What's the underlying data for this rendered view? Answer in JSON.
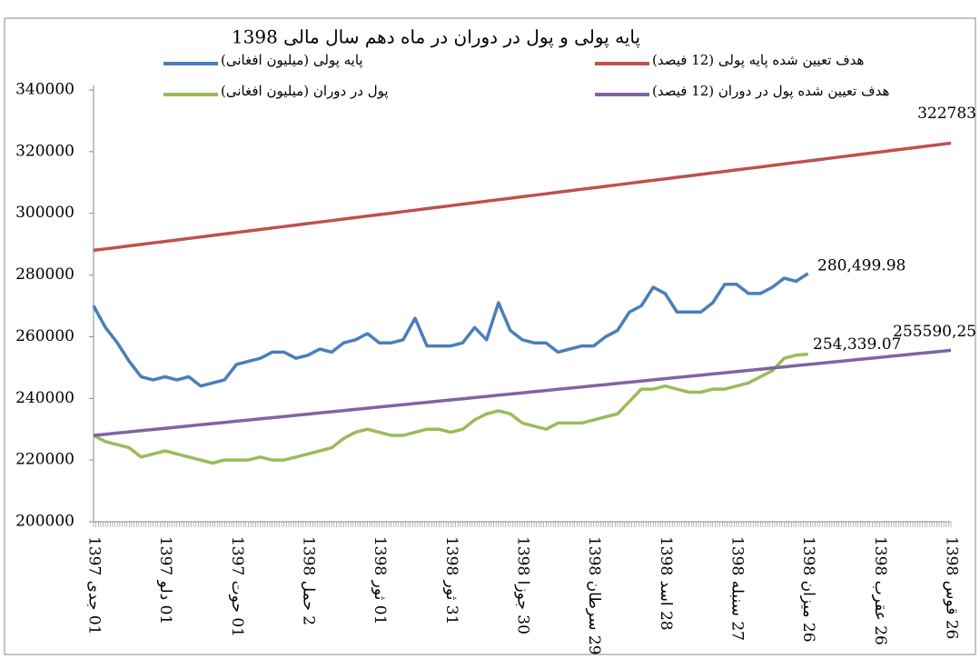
{
  "chart_data": {
    "type": "line",
    "title": "پایه پولی و پول در دوران در ماه دهم سال مالی 1398",
    "categories": [
      "01 جدی 1397",
      null,
      null,
      null,
      null,
      null,
      "01 دلو 1397",
      null,
      null,
      null,
      null,
      null,
      "01 حوت 1397",
      null,
      null,
      null,
      null,
      null,
      "2 حمل 1398",
      null,
      null,
      null,
      null,
      null,
      "01 ثور 1398",
      null,
      null,
      null,
      null,
      null,
      "31 ثور 1398",
      null,
      null,
      null,
      null,
      null,
      "30 جوزا 1398",
      null,
      null,
      null,
      null,
      null,
      "29 سرطان 1398",
      null,
      null,
      null,
      null,
      null,
      "28 اسد 1398",
      null,
      null,
      null,
      null,
      null,
      "27 سنبله 1398",
      null,
      null,
      null,
      null,
      null,
      "26 میزان 1398",
      null,
      null,
      null,
      null,
      null,
      "26 عقرب 1398",
      null,
      null,
      null,
      null,
      null,
      "26 قوس 1398"
    ],
    "series": [
      {
        "name": "پایه پولی (میلیون افغانی)",
        "color": "#4a7ebb",
        "values": [
          270000,
          263000,
          258000,
          252000,
          247000,
          246000,
          247000,
          246000,
          247000,
          244000,
          245000,
          246000,
          251000,
          252000,
          253000,
          255000,
          255000,
          253000,
          254000,
          256000,
          255000,
          258000,
          259000,
          261000,
          258000,
          258000,
          259000,
          266000,
          257000,
          257000,
          257000,
          258000,
          263000,
          259000,
          271000,
          262000,
          259000,
          258000,
          258000,
          255000,
          256000,
          257000,
          257000,
          260000,
          262000,
          268000,
          270000,
          276000,
          274000,
          268000,
          268000,
          268000,
          271000,
          277000,
          277000,
          274000,
          274000,
          276000,
          279000,
          278000,
          280499.98,
          null,
          null,
          null,
          null,
          null,
          null,
          null,
          null,
          null,
          null,
          null,
          null
        ],
        "value_labels": [
          null,
          null,
          null,
          null,
          null,
          null,
          null,
          null,
          null,
          null,
          null,
          null,
          null,
          null,
          null,
          null,
          null,
          null,
          null,
          null,
          null,
          null,
          null,
          null,
          null,
          null,
          null,
          null,
          null,
          null,
          null,
          null,
          null,
          null,
          null,
          null,
          null,
          null,
          null,
          null,
          null,
          null,
          null,
          null,
          null,
          null,
          null,
          null,
          null,
          null,
          null,
          null,
          null,
          null,
          null,
          null,
          null,
          null,
          null,
          null,
          "280,499.98",
          null,
          null,
          null,
          null,
          null,
          null,
          null,
          null,
          null,
          null,
          null,
          null
        ]
      },
      {
        "name": "هدف تعیین شده پایه پولی (12 فیصد)",
        "color": "#c0504d",
        "values": [
          288000,
          288483,
          288966,
          289449,
          289932,
          290415,
          290898,
          291381,
          291864,
          292347,
          292830,
          293313,
          293796,
          294279,
          294762,
          295245,
          295728,
          296211,
          296694,
          297177,
          297660,
          298143,
          298626,
          299109,
          299592,
          300075,
          300558,
          301041,
          301524,
          302007,
          302490,
          302973,
          303456,
          303939,
          304422,
          304905,
          305388,
          305871,
          306354,
          306837,
          307320,
          307803,
          308286,
          308769,
          309252,
          309735,
          310218,
          310701,
          311184,
          311667,
          312150,
          312633,
          313116,
          313599,
          314082,
          314565,
          315048,
          315531,
          316014,
          316497,
          316980,
          317463,
          317946,
          318429,
          318912,
          319395,
          319878,
          320361,
          320844,
          321327,
          321810,
          322293,
          322783
        ],
        "value_labels": [
          null,
          null,
          null,
          null,
          null,
          null,
          null,
          null,
          null,
          null,
          null,
          null,
          null,
          null,
          null,
          null,
          null,
          null,
          null,
          null,
          null,
          null,
          null,
          null,
          null,
          null,
          null,
          null,
          null,
          null,
          null,
          null,
          null,
          null,
          null,
          null,
          null,
          null,
          null,
          null,
          null,
          null,
          null,
          null,
          null,
          null,
          null,
          null,
          null,
          null,
          null,
          null,
          null,
          null,
          null,
          null,
          null,
          null,
          null,
          null,
          null,
          null,
          null,
          null,
          null,
          null,
          null,
          null,
          null,
          null,
          null,
          null,
          "322783"
        ]
      },
      {
        "name": "پول در دوران (میلیون افغانی)",
        "color": "#9bbb59",
        "values": [
          228000,
          226000,
          225000,
          224000,
          221000,
          222000,
          223000,
          222000,
          221000,
          220000,
          219000,
          220000,
          220000,
          220000,
          221000,
          220000,
          220000,
          221000,
          222000,
          223000,
          224000,
          227000,
          229000,
          230000,
          229000,
          228000,
          228000,
          229000,
          230000,
          230000,
          229000,
          230000,
          233000,
          235000,
          236000,
          235000,
          232000,
          231000,
          230000,
          232000,
          232000,
          232000,
          233000,
          234000,
          235000,
          239000,
          243000,
          243000,
          244000,
          243000,
          242000,
          242000,
          243000,
          243000,
          244000,
          245000,
          247000,
          249000,
          253000,
          254000,
          254339.07,
          null,
          null,
          null,
          null,
          null,
          null,
          null,
          null,
          null,
          null,
          null,
          null
        ],
        "value_labels": [
          null,
          null,
          null,
          null,
          null,
          null,
          null,
          null,
          null,
          null,
          null,
          null,
          null,
          null,
          null,
          null,
          null,
          null,
          null,
          null,
          null,
          null,
          null,
          null,
          null,
          null,
          null,
          null,
          null,
          null,
          null,
          null,
          null,
          null,
          null,
          null,
          null,
          null,
          null,
          null,
          null,
          null,
          null,
          null,
          null,
          null,
          null,
          null,
          null,
          null,
          null,
          null,
          null,
          null,
          null,
          null,
          null,
          null,
          null,
          null,
          "254,339.07",
          null,
          null,
          null,
          null,
          null,
          null,
          null,
          null,
          null,
          null,
          null,
          null
        ]
      },
      {
        "name": "هدف تعیین شده پول در دوران (12 فیصد)",
        "color": "#8064a2",
        "values": [
          228000,
          228383,
          228766,
          229149,
          229532,
          229915,
          230298,
          230681,
          231064,
          231447,
          231830,
          232213,
          232596,
          232979,
          233362,
          233745,
          234128,
          234511,
          234894,
          235277,
          235660,
          236043,
          236426,
          236809,
          237192,
          237575,
          237958,
          238341,
          238724,
          239107,
          239490,
          239873,
          240256,
          240639,
          241022,
          241405,
          241788,
          242171,
          242554,
          242937,
          243320,
          243703,
          244086,
          244469,
          244852,
          245235,
          245618,
          246001,
          246384,
          246767,
          247150,
          247533,
          247916,
          248299,
          248682,
          249065,
          249448,
          249831,
          250214,
          250597,
          250980,
          251363,
          251746,
          252129,
          252512,
          252895,
          253278,
          253661,
          254044,
          254427,
          254810,
          255193,
          255590.25
        ],
        "value_labels": [
          null,
          null,
          null,
          null,
          null,
          null,
          null,
          null,
          null,
          null,
          null,
          null,
          null,
          null,
          null,
          null,
          null,
          null,
          null,
          null,
          null,
          null,
          null,
          null,
          null,
          null,
          null,
          null,
          null,
          null,
          null,
          null,
          null,
          null,
          null,
          null,
          null,
          null,
          null,
          null,
          null,
          null,
          null,
          null,
          null,
          null,
          null,
          null,
          null,
          null,
          null,
          null,
          null,
          null,
          null,
          null,
          null,
          null,
          null,
          null,
          null,
          null,
          null,
          null,
          null,
          null,
          null,
          null,
          null,
          null,
          null,
          null,
          "255590,25"
        ]
      }
    ],
    "ylim": [
      200000,
      340000
    ],
    "yticks": [
      200000,
      220000,
      240000,
      260000,
      280000,
      300000,
      320000,
      340000
    ]
  }
}
